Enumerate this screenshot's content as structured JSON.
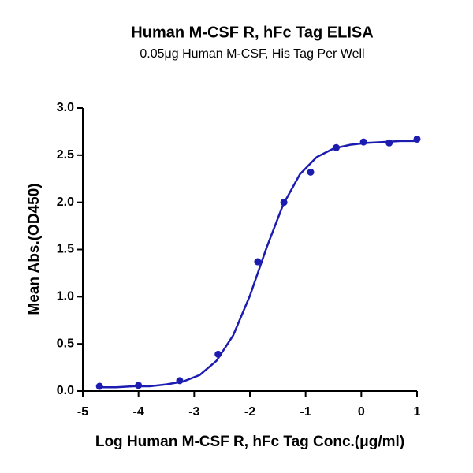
{
  "chart_data": {
    "type": "scatter",
    "title": "Human M-CSF R, hFc Tag ELISA",
    "subtitle": "0.05μg Human M-CSF, His Tag Per Well",
    "x_label": "Log Human M-CSF R, hFc Tag Conc.(μg/ml)",
    "y_label": "Mean Abs.(OD450)",
    "xlim": [
      -5,
      1
    ],
    "xticks": [
      -5,
      -4,
      -3,
      -2,
      -1,
      0,
      1
    ],
    "ylim": [
      0,
      3
    ],
    "yticks": [
      {
        "value": 0,
        "label": "0.0"
      },
      0.5,
      {
        "value": 1,
        "label": "1.0"
      },
      1.5,
      {
        "value": 2,
        "label": "2.0"
      },
      2.5,
      {
        "value": 3,
        "label": "3.0"
      }
    ],
    "series": [
      {
        "type": "scatter",
        "color": "#1c1cb0",
        "x": [
          -4.7,
          -4.0,
          -3.26,
          -2.57,
          -1.86,
          -1.39,
          -0.91,
          -0.45,
          0.04,
          0.5,
          1.0
        ],
        "values": [
          0.05,
          0.06,
          0.11,
          0.39,
          1.37,
          2.0,
          2.32,
          2.58,
          2.64,
          2.63,
          2.67
        ]
      },
      {
        "type": "line",
        "color": "#1c1cb0",
        "x": [
          -4.7,
          -4.4,
          -4.1,
          -3.8,
          -3.5,
          -3.2,
          -2.9,
          -2.6,
          -2.3,
          -2.0,
          -1.7,
          -1.4,
          -1.1,
          -0.8,
          -0.5,
          -0.2,
          0.1,
          0.4,
          0.7,
          1.0
        ],
        "values": [
          0.04,
          0.04,
          0.05,
          0.05,
          0.07,
          0.1,
          0.17,
          0.32,
          0.59,
          1.01,
          1.52,
          1.98,
          2.3,
          2.48,
          2.57,
          2.61,
          2.63,
          2.64,
          2.65,
          2.65
        ]
      }
    ]
  }
}
